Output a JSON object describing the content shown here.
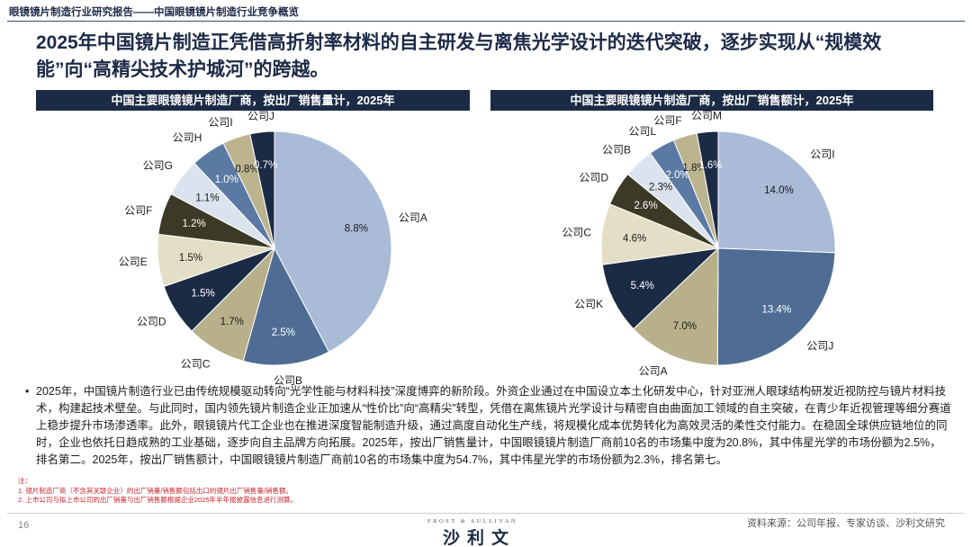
{
  "doc_header": "眼镜镜片制造行业研究报告——中国眼镜镜片制造行业竞争概览",
  "headline": "2025年中国镜片制造正凭借高折射率材料的自主研发与离焦光学设计的迭代突破，逐步实现从“规模效能”向“高精尖技术护城河”的跨越。",
  "chart_data": [
    {
      "type": "pie",
      "title": "中国主要眼镜镜片制造厂商，按出厂销售量计，2025年",
      "slices": [
        {
          "label": "公司A",
          "value_label": "8.8%",
          "value": 8.8,
          "color": "#a9bbd6",
          "text": "#1b1b1b"
        },
        {
          "label": "公司B",
          "value_label": "2.5%",
          "value": 2.5,
          "color": "#4f6d94",
          "text": "#ffffff"
        },
        {
          "label": "公司C",
          "value_label": "1.7%",
          "value": 1.7,
          "color": "#b8b08a",
          "text": "#1b1b1b"
        },
        {
          "label": "公司D",
          "value_label": "1.5%",
          "value": 1.5,
          "color": "#1c2b45",
          "text": "#ffffff"
        },
        {
          "label": "公司E",
          "value_label": "1.5%",
          "value": 1.5,
          "color": "#e3dfc6",
          "text": "#1b1b1b"
        },
        {
          "label": "公司F",
          "value_label": "1.2%",
          "value": 1.2,
          "color": "#3a3a26",
          "text": "#ffffff"
        },
        {
          "label": "公司G",
          "value_label": "1.1%",
          "value": 1.1,
          "color": "#dbe3ee",
          "text": "#1b1b1b"
        },
        {
          "label": "公司H",
          "value_label": "1.0%",
          "value": 1.0,
          "color": "#5a7aa4",
          "text": "#ffffff"
        },
        {
          "label": "公司I",
          "value_label": "0.8%",
          "value": 0.8,
          "color": "#bcb48e",
          "text": "#1b1b1b"
        },
        {
          "label": "公司J",
          "value_label": "0.7%",
          "value": 0.7,
          "color": "#1c2b45",
          "text": "#ffffff"
        }
      ]
    },
    {
      "type": "pie",
      "title": "中国主要眼镜镜片制造厂商，按出厂销售额计，2025年",
      "slices": [
        {
          "label": "公司I",
          "value_label": "14.0%",
          "value": 14.0,
          "color": "#a9bbd6",
          "text": "#1b1b1b"
        },
        {
          "label": "公司J",
          "value_label": "13.4%",
          "value": 13.4,
          "color": "#4f6d94",
          "text": "#ffffff"
        },
        {
          "label": "公司A",
          "value_label": "7.0%",
          "value": 7.0,
          "color": "#b8b08a",
          "text": "#1b1b1b"
        },
        {
          "label": "公司K",
          "value_label": "5.4%",
          "value": 5.4,
          "color": "#1c2b45",
          "text": "#ffffff"
        },
        {
          "label": "公司C",
          "value_label": "4.6%",
          "value": 4.6,
          "color": "#e3dfc6",
          "text": "#1b1b1b"
        },
        {
          "label": "公司D",
          "value_label": "2.6%",
          "value": 2.6,
          "color": "#3a3a26",
          "text": "#ffffff"
        },
        {
          "label": "公司B",
          "value_label": "2.3%",
          "value": 2.3,
          "color": "#dbe3ee",
          "text": "#1b1b1b"
        },
        {
          "label": "公司L",
          "value_label": "2.0%",
          "value": 2.0,
          "color": "#5a7aa4",
          "text": "#ffffff"
        },
        {
          "label": "公司F",
          "value_label": "1.8%",
          "value": 1.8,
          "color": "#bcb48e",
          "text": "#1b1b1b"
        },
        {
          "label": "公司M",
          "value_label": "1.6%",
          "value": 1.6,
          "color": "#1c2b45",
          "text": "#ffffff"
        }
      ]
    }
  ],
  "body_text": "2025年，中国镜片制造行业已由传统规模驱动转向“光学性能与材料科技”深度博弈的新阶段。外资企业通过在中国设立本土化研发中心，针对亚洲人眼球结构研发近视防控与镜片材料技术，构建起技术壁垒。与此同时，国内领先镜片制造企业正加速从“性价比”向“高精尖”转型，凭借在离焦镜片光学设计与精密自由曲面加工领域的自主突破，在青少年近视管理等细分赛道上稳步提升市场渗透率。此外，眼镜镜片代工企业也在推进深度智能制造升级，通过高度自动化生产线，将规模化成本优势转化为高效灵活的柔性交付能力。在稳固全球供应链地位的同时，企业也依托日趋成熟的工业基础，逐步向自主品牌方向拓展。2025年，按出厂销售量计，中国眼镜镜片制造厂商前10名的市场集中度为20.8%，其中伟星光学的市场份额为2.5%，排名第二。2025年，按出厂销售额计，中国眼镜镜片制造厂商前10名的市场集中度为54.7%，其中伟星光学的市场份额为2.3%，排名第七。",
  "notes": {
    "title": "注：",
    "line1": "1. 镜片制造厂商（不含其关联企业）的出厂销量/销售额包括出口的镜片出厂销售量/销售额。",
    "line2": "2. 上市公司与拟上市公司的出厂销量与出厂销售额根据企业2025年半年报披露信息进行测算。"
  },
  "page_number": "16",
  "logo": {
    "sub": "FROST & SULLIVAN",
    "main": "沙利文"
  },
  "source": "资料来源：公司年报、专家访谈、沙利文研究"
}
